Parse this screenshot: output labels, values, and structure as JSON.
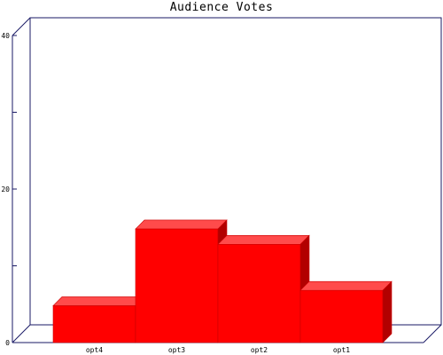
{
  "colors": {
    "axis": "#1a1a66",
    "bar_front": "#ff0000",
    "bar_top": "#ff4b4b",
    "bar_side": "#b20000",
    "bar_edge": "#cc0000",
    "text": "#000000"
  },
  "chart_data": {
    "type": "bar",
    "title": "Audience Votes",
    "xlabel": "",
    "ylabel": "",
    "categories": [
      "opt4",
      "opt3",
      "opt2",
      "opt1"
    ],
    "values": [
      4.8,
      14.8,
      12.8,
      6.8
    ],
    "ylim": [
      0,
      40
    ],
    "y_tick_labels": [
      {
        "value": 0,
        "label": "0"
      },
      {
        "value": 20,
        "label": "20"
      },
      {
        "value": 40,
        "label": "40"
      }
    ],
    "y_minor_ticks": [
      10,
      30
    ],
    "grid": false,
    "legend": "none",
    "style": "3d"
  }
}
